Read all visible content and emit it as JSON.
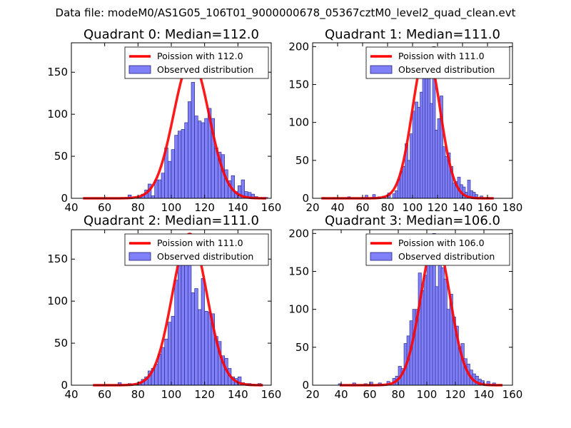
{
  "figure_title": "Data file: modeM0/AS1G05_106T01_9000000678_05367cztM0_level2_quad_clean.evt",
  "colors": {
    "bar_fill": "#8080f8",
    "bar_edge": "#202080",
    "curve": "#ff0000",
    "axes": "#000000"
  },
  "chart_data": [
    {
      "type": "bar",
      "title": "Quadrant 0: Median=112.0",
      "median": 112.0,
      "xlim": [
        40,
        160
      ],
      "ylim": [
        0,
        185
      ],
      "xticks": [
        40,
        60,
        80,
        100,
        120,
        140,
        160
      ],
      "yticks": [
        0,
        50,
        100,
        150
      ],
      "bin_width": 2,
      "legend": [
        "Poission with 112.0",
        "Observed distribution"
      ],
      "legend_position": "upper right",
      "bins": [
        {
          "x": 74,
          "y": 4
        },
        {
          "x": 78,
          "y": 1
        },
        {
          "x": 80,
          "y": 1
        },
        {
          "x": 82,
          "y": 5
        },
        {
          "x": 84,
          "y": 10
        },
        {
          "x": 86,
          "y": 17
        },
        {
          "x": 88,
          "y": 3
        },
        {
          "x": 90,
          "y": 22
        },
        {
          "x": 92,
          "y": 22
        },
        {
          "x": 94,
          "y": 30
        },
        {
          "x": 96,
          "y": 60
        },
        {
          "x": 98,
          "y": 44
        },
        {
          "x": 100,
          "y": 58
        },
        {
          "x": 102,
          "y": 75
        },
        {
          "x": 104,
          "y": 80
        },
        {
          "x": 106,
          "y": 82
        },
        {
          "x": 108,
          "y": 90
        },
        {
          "x": 110,
          "y": 115
        },
        {
          "x": 112,
          "y": 138
        },
        {
          "x": 114,
          "y": 98
        },
        {
          "x": 116,
          "y": 92
        },
        {
          "x": 118,
          "y": 90
        },
        {
          "x": 120,
          "y": 95
        },
        {
          "x": 122,
          "y": 107
        },
        {
          "x": 124,
          "y": 95
        },
        {
          "x": 126,
          "y": 60
        },
        {
          "x": 128,
          "y": 55
        },
        {
          "x": 130,
          "y": 52
        },
        {
          "x": 132,
          "y": 34
        },
        {
          "x": 134,
          "y": 21
        },
        {
          "x": 136,
          "y": 27
        },
        {
          "x": 138,
          "y": 8
        },
        {
          "x": 140,
          "y": 15
        },
        {
          "x": 142,
          "y": 22
        },
        {
          "x": 144,
          "y": 8
        },
        {
          "x": 146,
          "y": 7
        },
        {
          "x": 148,
          "y": 5
        },
        {
          "x": 150,
          "y": 2
        },
        {
          "x": 152,
          "y": 0
        },
        {
          "x": 154,
          "y": 1
        },
        {
          "x": 156,
          "y": 1
        }
      ],
      "curve_mean": 112.0,
      "curve_peak": 165,
      "curve_sigma": 10.6,
      "curve_range": [
        47,
        157
      ]
    },
    {
      "type": "bar",
      "title": "Quadrant 1: Median=111.0",
      "median": 111.0,
      "xlim": [
        20,
        180
      ],
      "ylim": [
        0,
        205
      ],
      "xticks": [
        20,
        40,
        60,
        80,
        100,
        120,
        140,
        160,
        180
      ],
      "yticks": [
        0,
        50,
        100,
        150,
        200
      ],
      "bin_width": 2.3,
      "legend": [
        "Poission with 111.0",
        "Observed distribution"
      ],
      "legend_position": "upper right",
      "bins": [
        {
          "x": 28,
          "y": 1
        },
        {
          "x": 36,
          "y": 1
        },
        {
          "x": 48,
          "y": 2
        },
        {
          "x": 62,
          "y": 4
        },
        {
          "x": 68,
          "y": 5
        },
        {
          "x": 72,
          "y": 2
        },
        {
          "x": 76,
          "y": 3
        },
        {
          "x": 80,
          "y": 7
        },
        {
          "x": 84,
          "y": 6
        },
        {
          "x": 86,
          "y": 10
        },
        {
          "x": 88,
          "y": 25
        },
        {
          "x": 90,
          "y": 35
        },
        {
          "x": 92,
          "y": 42
        },
        {
          "x": 94,
          "y": 72
        },
        {
          "x": 96,
          "y": 50
        },
        {
          "x": 98,
          "y": 85
        },
        {
          "x": 100,
          "y": 115
        },
        {
          "x": 102,
          "y": 127
        },
        {
          "x": 104,
          "y": 120
        },
        {
          "x": 106,
          "y": 140
        },
        {
          "x": 108,
          "y": 172
        },
        {
          "x": 110,
          "y": 158
        },
        {
          "x": 112,
          "y": 170
        },
        {
          "x": 114,
          "y": 125
        },
        {
          "x": 116,
          "y": 200
        },
        {
          "x": 118,
          "y": 90
        },
        {
          "x": 120,
          "y": 105
        },
        {
          "x": 122,
          "y": 135
        },
        {
          "x": 124,
          "y": 68
        },
        {
          "x": 126,
          "y": 55
        },
        {
          "x": 128,
          "y": 60
        },
        {
          "x": 130,
          "y": 42
        },
        {
          "x": 132,
          "y": 20
        },
        {
          "x": 134,
          "y": 22
        },
        {
          "x": 136,
          "y": 28
        },
        {
          "x": 138,
          "y": 18
        },
        {
          "x": 140,
          "y": 15
        },
        {
          "x": 142,
          "y": 8
        },
        {
          "x": 144,
          "y": 24
        },
        {
          "x": 146,
          "y": 10
        },
        {
          "x": 148,
          "y": 8
        },
        {
          "x": 150,
          "y": 5
        },
        {
          "x": 154,
          "y": 3
        },
        {
          "x": 160,
          "y": 1
        }
      ],
      "curve_mean": 111.0,
      "curve_peak": 195,
      "curve_sigma": 11.0,
      "curve_range": [
        27,
        165
      ]
    },
    {
      "type": "bar",
      "title": "Quadrant 2: Median=111.0",
      "median": 111.0,
      "xlim": [
        40,
        160
      ],
      "ylim": [
        0,
        185
      ],
      "xticks": [
        40,
        60,
        80,
        100,
        120,
        140,
        160
      ],
      "yticks": [
        0,
        50,
        100,
        150
      ],
      "bin_width": 2,
      "legend": [
        "Poission with 111.0",
        "Observed distribution"
      ],
      "legend_position": "upper right",
      "bins": [
        {
          "x": 68,
          "y": 3
        },
        {
          "x": 74,
          "y": 2
        },
        {
          "x": 78,
          "y": 2
        },
        {
          "x": 80,
          "y": 4
        },
        {
          "x": 82,
          "y": 7
        },
        {
          "x": 84,
          "y": 10
        },
        {
          "x": 86,
          "y": 17
        },
        {
          "x": 88,
          "y": 20
        },
        {
          "x": 90,
          "y": 25
        },
        {
          "x": 92,
          "y": 37
        },
        {
          "x": 94,
          "y": 45
        },
        {
          "x": 96,
          "y": 55
        },
        {
          "x": 98,
          "y": 75
        },
        {
          "x": 100,
          "y": 82
        },
        {
          "x": 102,
          "y": 125
        },
        {
          "x": 104,
          "y": 148
        },
        {
          "x": 106,
          "y": 172
        },
        {
          "x": 108,
          "y": 150
        },
        {
          "x": 110,
          "y": 160
        },
        {
          "x": 112,
          "y": 110
        },
        {
          "x": 114,
          "y": 115
        },
        {
          "x": 116,
          "y": 90
        },
        {
          "x": 118,
          "y": 127
        },
        {
          "x": 120,
          "y": 88
        },
        {
          "x": 122,
          "y": 87
        },
        {
          "x": 124,
          "y": 85
        },
        {
          "x": 126,
          "y": 58
        },
        {
          "x": 128,
          "y": 52
        },
        {
          "x": 130,
          "y": 35
        },
        {
          "x": 132,
          "y": 32
        },
        {
          "x": 134,
          "y": 20
        },
        {
          "x": 136,
          "y": 10
        },
        {
          "x": 138,
          "y": 8
        },
        {
          "x": 140,
          "y": 10
        },
        {
          "x": 142,
          "y": 3
        },
        {
          "x": 144,
          "y": 2
        },
        {
          "x": 146,
          "y": 2
        },
        {
          "x": 148,
          "y": 1
        },
        {
          "x": 152,
          "y": 2
        }
      ],
      "curve_mean": 111.0,
      "curve_peak": 180,
      "curve_sigma": 10.3,
      "curve_range": [
        53,
        155
      ]
    },
    {
      "type": "bar",
      "title": "Quadrant 3: Median=106.0",
      "median": 106.0,
      "xlim": [
        20,
        160
      ],
      "ylim": [
        0,
        205
      ],
      "xticks": [
        20,
        40,
        60,
        80,
        100,
        120,
        140,
        160
      ],
      "yticks": [
        0,
        50,
        100,
        150,
        200
      ],
      "bin_width": 2.2,
      "legend": [
        "Poission with 106.0",
        "Observed distribution"
      ],
      "legend_position": "upper right",
      "bins": [
        {
          "x": 38,
          "y": 2
        },
        {
          "x": 48,
          "y": 3
        },
        {
          "x": 56,
          "y": 2
        },
        {
          "x": 60,
          "y": 4
        },
        {
          "x": 66,
          "y": 3
        },
        {
          "x": 72,
          "y": 5
        },
        {
          "x": 76,
          "y": 9
        },
        {
          "x": 78,
          "y": 12
        },
        {
          "x": 80,
          "y": 25
        },
        {
          "x": 82,
          "y": 22
        },
        {
          "x": 84,
          "y": 55
        },
        {
          "x": 86,
          "y": 65
        },
        {
          "x": 88,
          "y": 85
        },
        {
          "x": 90,
          "y": 100
        },
        {
          "x": 92,
          "y": 100
        },
        {
          "x": 94,
          "y": 148
        },
        {
          "x": 96,
          "y": 125
        },
        {
          "x": 98,
          "y": 145
        },
        {
          "x": 100,
          "y": 165
        },
        {
          "x": 102,
          "y": 170
        },
        {
          "x": 104,
          "y": 200
        },
        {
          "x": 106,
          "y": 130
        },
        {
          "x": 108,
          "y": 180
        },
        {
          "x": 110,
          "y": 155
        },
        {
          "x": 112,
          "y": 140
        },
        {
          "x": 114,
          "y": 100
        },
        {
          "x": 116,
          "y": 120
        },
        {
          "x": 118,
          "y": 90
        },
        {
          "x": 120,
          "y": 78
        },
        {
          "x": 122,
          "y": 50
        },
        {
          "x": 124,
          "y": 55
        },
        {
          "x": 126,
          "y": 35
        },
        {
          "x": 128,
          "y": 28
        },
        {
          "x": 130,
          "y": 20
        },
        {
          "x": 132,
          "y": 15
        },
        {
          "x": 134,
          "y": 12
        },
        {
          "x": 136,
          "y": 8
        },
        {
          "x": 138,
          "y": 6
        },
        {
          "x": 142,
          "y": 5
        },
        {
          "x": 146,
          "y": 3
        },
        {
          "x": 150,
          "y": 1
        }
      ],
      "curve_mean": 106.0,
      "curve_peak": 192,
      "curve_sigma": 10.3,
      "curve_range": [
        39,
        153
      ]
    }
  ]
}
